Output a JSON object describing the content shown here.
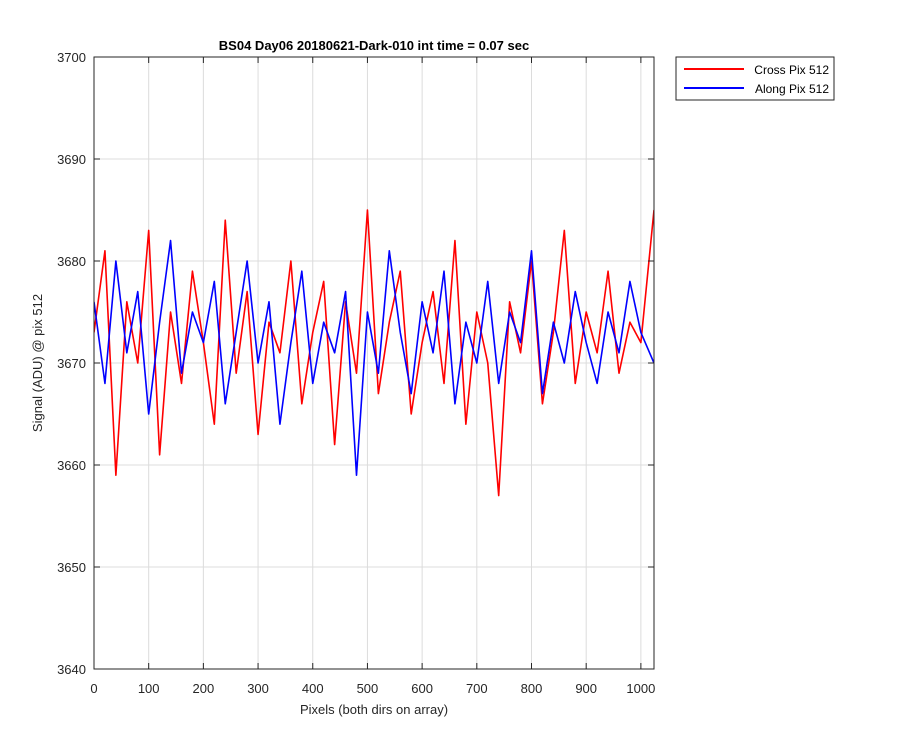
{
  "chart_data": {
    "type": "line",
    "title": "BS04 Day06 20180621-Dark-010 int time = 0.07 sec",
    "xlabel": "Pixels (both dirs on array)",
    "ylabel": "Signal (ADU) @ pix 512",
    "xlim": [
      0,
      1024
    ],
    "ylim": [
      3640,
      3700
    ],
    "xticks": [
      0,
      100,
      200,
      300,
      400,
      500,
      600,
      700,
      800,
      900,
      1000
    ],
    "yticks": [
      3640,
      3650,
      3660,
      3670,
      3680,
      3690,
      3700
    ],
    "grid": true,
    "legend_location": "outside-top-right",
    "series": [
      {
        "name": "Cross Pix 512",
        "color": "#ff0000",
        "x": [
          0,
          20,
          40,
          60,
          80,
          100,
          120,
          140,
          160,
          180,
          200,
          220,
          240,
          260,
          280,
          300,
          320,
          340,
          360,
          380,
          400,
          420,
          440,
          460,
          480,
          500,
          520,
          540,
          560,
          580,
          600,
          620,
          640,
          660,
          680,
          700,
          720,
          740,
          760,
          780,
          800,
          820,
          840,
          860,
          880,
          900,
          920,
          940,
          960,
          980,
          1000,
          1024
        ],
        "y": [
          3673,
          3681,
          3659,
          3676,
          3670,
          3683,
          3661,
          3675,
          3668,
          3679,
          3672,
          3664,
          3684,
          3669,
          3677,
          3663,
          3674,
          3671,
          3680,
          3666,
          3673,
          3678,
          3662,
          3676,
          3669,
          3685,
          3667,
          3674,
          3679,
          3665,
          3672,
          3677,
          3668,
          3682,
          3664,
          3675,
          3670,
          3657,
          3676,
          3671,
          3680,
          3666,
          3673,
          3683,
          3668,
          3675,
          3671,
          3679,
          3669,
          3674,
          3672,
          3685
        ]
      },
      {
        "name": "Along Pix 512",
        "color": "#0000ff",
        "x": [
          0,
          20,
          40,
          60,
          80,
          100,
          120,
          140,
          160,
          180,
          200,
          220,
          240,
          260,
          280,
          300,
          320,
          340,
          360,
          380,
          400,
          420,
          440,
          460,
          480,
          500,
          520,
          540,
          560,
          580,
          600,
          620,
          640,
          660,
          680,
          700,
          720,
          740,
          760,
          780,
          800,
          820,
          840,
          860,
          880,
          900,
          920,
          940,
          960,
          980,
          1000,
          1024
        ],
        "y": [
          3676,
          3668,
          3680,
          3671,
          3677,
          3665,
          3674,
          3682,
          3669,
          3675,
          3672,
          3678,
          3666,
          3673,
          3680,
          3670,
          3676,
          3664,
          3672,
          3679,
          3668,
          3674,
          3671,
          3677,
          3659,
          3675,
          3669,
          3681,
          3673,
          3667,
          3676,
          3671,
          3679,
          3666,
          3674,
          3670,
          3678,
          3668,
          3675,
          3672,
          3681,
          3667,
          3674,
          3670,
          3677,
          3672,
          3668,
          3675,
          3671,
          3678,
          3673,
          3670
        ]
      }
    ]
  }
}
